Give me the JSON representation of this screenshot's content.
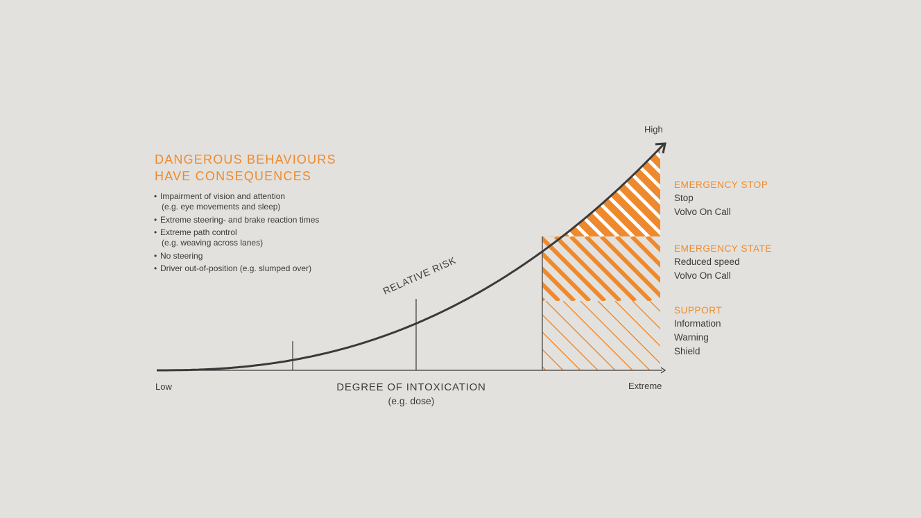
{
  "heading": {
    "line1": "DANGEROUS BEHAVIOURS",
    "line2": "HAVE CONSEQUENCES"
  },
  "bullets": [
    {
      "main": "Impairment of vision and attention",
      "sub": "(e.g. eye movements and sleep)"
    },
    {
      "main": "Extreme steering- and brake reaction times",
      "sub": ""
    },
    {
      "main": "Extreme path control",
      "sub": "(e.g. weaving across lanes)"
    },
    {
      "main": "No steering",
      "sub": ""
    },
    {
      "main": "Driver out-of-position (e.g. slumped over)",
      "sub": ""
    }
  ],
  "curve_label": "RELATIVE RISK",
  "axis": {
    "x_low": "Low",
    "x_high": "Extreme",
    "y_high": "High",
    "x_title": "DEGREE OF INTOXICATION",
    "x_subtitle": "(e.g. dose)"
  },
  "tiers": [
    {
      "title": "EMERGENCY STOP",
      "items": [
        "Stop",
        "Volvo On Call"
      ]
    },
    {
      "title": "EMERGENCY STATE",
      "items": [
        "Reduced speed",
        "Volvo On Call"
      ]
    },
    {
      "title": "SUPPORT",
      "items": [
        "Information",
        "Warning",
        "Shield"
      ]
    }
  ],
  "colors": {
    "background": "#e3e1dd",
    "accent": "#ee8a2d",
    "ink": "#3a3a3a"
  }
}
